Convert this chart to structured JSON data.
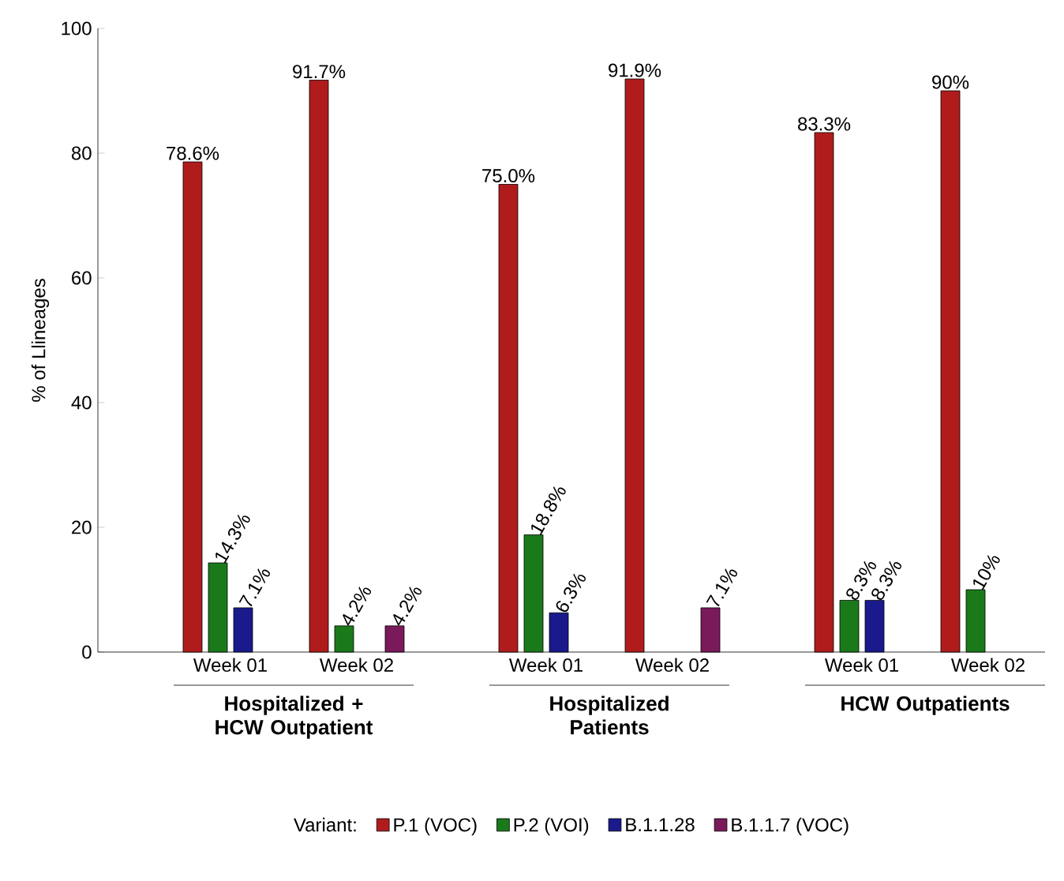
{
  "chart_data": {
    "type": "bar",
    "ylabel": "% of Llineages",
    "categories": [
      "Week 01",
      "Week 02",
      "Week 01",
      "Week 02",
      "Week 01",
      "Week 02"
    ],
    "series": [
      {
        "name": "P.1 (VOC)",
        "color": "#b01c1c",
        "values": [
          78.6,
          91.7,
          75.0,
          91.9,
          83.3,
          90
        ],
        "value_labels": [
          "78.6%",
          "91.7%",
          "75.0%",
          "91.9%",
          "83.3%",
          "90%"
        ]
      },
      {
        "name": "P.2 (VOI)",
        "color": "#1a7a1a",
        "values": [
          14.3,
          4.2,
          18.8,
          null,
          8.3,
          10
        ],
        "value_labels": [
          "14.3%",
          "4.2%",
          "18.8%",
          null,
          "8.3%",
          "10%"
        ]
      },
      {
        "name": "B.1.1.28",
        "color": "#1a1a8c",
        "values": [
          7.1,
          null,
          6.3,
          null,
          8.3,
          null
        ],
        "value_labels": [
          "7.1%",
          null,
          "6.3%",
          null,
          "8.3%",
          null
        ]
      },
      {
        "name": "B.1.1.7 (VOC)",
        "color": "#7a1a5a",
        "values": [
          null,
          4.2,
          null,
          7.1,
          null,
          null
        ],
        "value_labels": [
          null,
          "4.2%",
          null,
          "7.1%",
          null,
          null
        ]
      }
    ],
    "legend_title": "Variant:",
    "legend": "bottom",
    "ylim": [
      0,
      100
    ],
    "yticks": [
      0,
      20,
      40,
      60,
      80,
      100
    ],
    "annotations": [
      "Hospitalized + HCW Outpatient",
      "Hospitalized Patients",
      "HCW Outpatients"
    ]
  }
}
